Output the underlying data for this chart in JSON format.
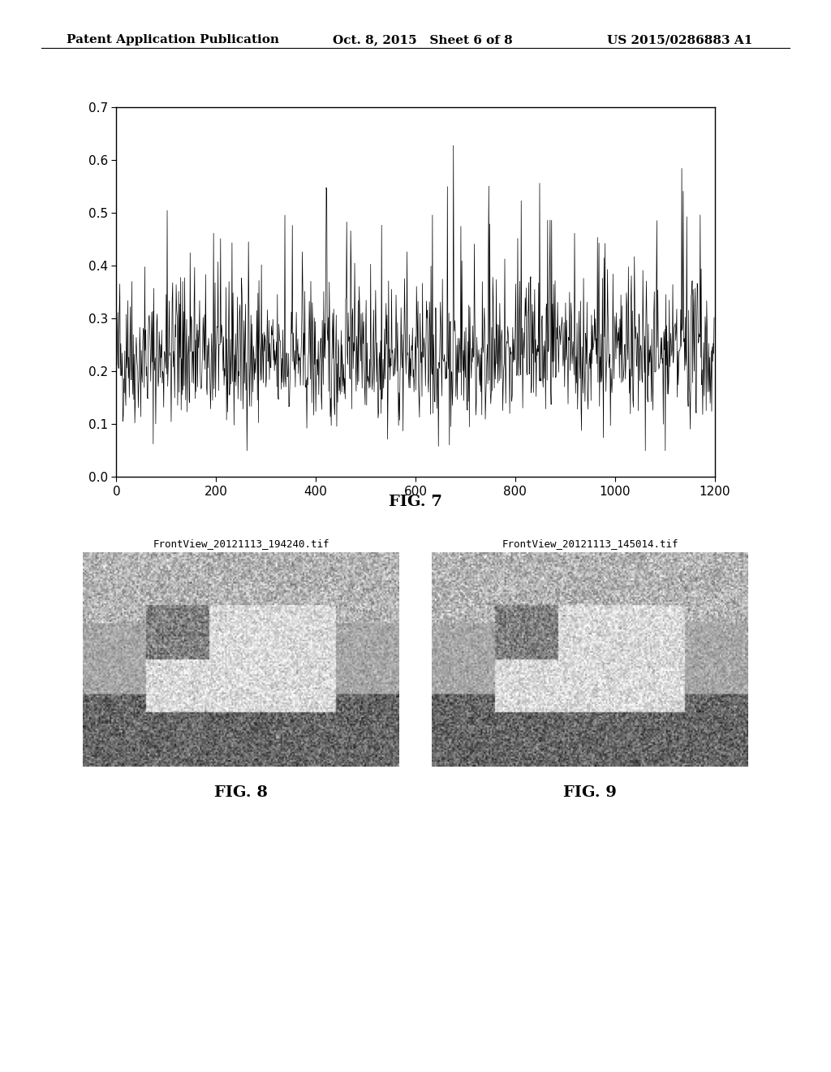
{
  "header_left": "Patent Application Publication",
  "header_mid": "Oct. 8, 2015   Sheet 6 of 8",
  "header_right": "US 2015/0286883 A1",
  "fig7_label": "FIG. 7",
  "fig8_label": "FIG. 8",
  "fig9_label": "FIG. 9",
  "fig8_filename": "FrontView_20121113_194240.tif",
  "fig9_filename": "FrontView_20121113_145014.tif",
  "plot_xlim": [
    0,
    1200
  ],
  "plot_ylim": [
    0,
    0.7
  ],
  "plot_xticks": [
    0,
    200,
    400,
    600,
    800,
    1000,
    1200
  ],
  "plot_yticks": [
    0,
    0.1,
    0.2,
    0.3,
    0.4,
    0.5,
    0.6,
    0.7
  ],
  "signal_seed": 42,
  "signal_n": 1200,
  "signal_base_mean": 0.22,
  "signal_base_std": 0.06,
  "background_color": "#ffffff",
  "line_color": "#000000",
  "text_color": "#000000",
  "header_fontsize": 11,
  "fig_label_fontsize": 14,
  "filename_fontsize": 9
}
